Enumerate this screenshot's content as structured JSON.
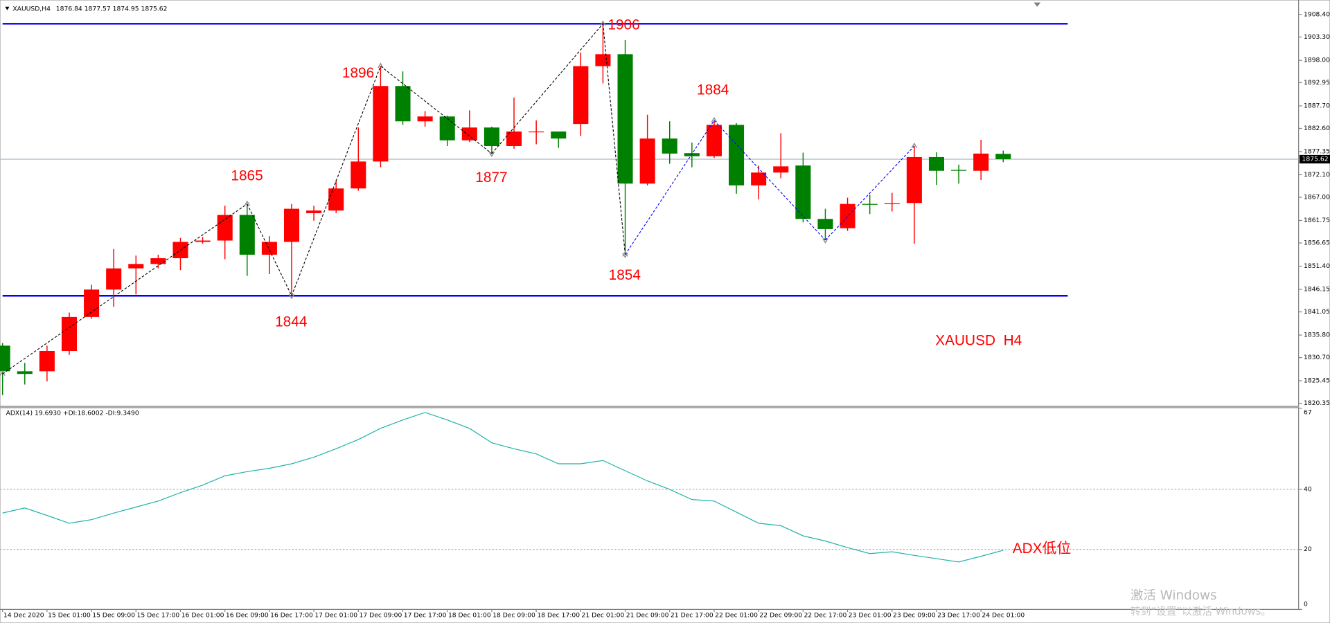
{
  "chart_data": [
    {
      "type": "candlestick",
      "symbol": "XAUUSD,H4",
      "categories": [
        "14 Dec 2020",
        null,
        "15 Dec 01:00",
        null,
        "15 Dec 09:00",
        null,
        "15 Dec 17:00",
        null,
        "16 Dec 01:00",
        null,
        "16 Dec 09:00",
        null,
        "16 Dec 17:00",
        null,
        "17 Dec 01:00",
        null,
        "17 Dec 09:00",
        null,
        "17 Dec 17:00",
        null,
        "18 Dec 01:00",
        null,
        "18 Dec 09:00",
        null,
        "18 Dec 17:00",
        null,
        "21 Dec 01:00",
        null,
        "21 Dec 09:00",
        null,
        "21 Dec 17:00",
        null,
        "22 Dec 01:00",
        null,
        "22 Dec 09:00",
        null,
        "22 Dec 17:00",
        null,
        "23 Dec 01:00",
        null,
        "23 Dec 09:00",
        null,
        "23 Dec 17:00",
        null,
        "24 Dec 01:00",
        null
      ],
      "open": [
        1833.4,
        1827.6,
        1827.6,
        1832.2,
        1839.9,
        1846.1,
        1850.9,
        1851.9,
        1853.2,
        1856.9,
        1857.2,
        1863.0,
        1854.0,
        1856.9,
        1863.4,
        1864.0,
        1869.0,
        1875.1,
        1892.2,
        1884.2,
        1885.3,
        1879.9,
        1882.8,
        1878.6,
        1881.8,
        1881.9,
        1883.6,
        1896.7,
        1899.4,
        1870.1,
        1880.3,
        1877.0,
        1876.3,
        1883.4,
        1869.7,
        1872.6,
        1874.2,
        1862.1,
        1860.0,
        1865.5,
        1865.5,
        1865.7,
        1876.1,
        1873.2,
        1873.0,
        1876.84
      ],
      "high": [
        1834.0,
        1829.5,
        1833.4,
        1840.9,
        1847.2,
        1855.3,
        1853.8,
        1854.0,
        1857.8,
        1858.0,
        1865.1,
        1865.5,
        1858.2,
        1865.5,
        1865.1,
        1870.9,
        1882.8,
        1896.7,
        1895.5,
        1886.5,
        1885.5,
        1886.7,
        1883.0,
        1889.6,
        1884.4,
        1881.9,
        1899.8,
        1906.3,
        1902.6,
        1885.7,
        1884.2,
        1879.4,
        1884.4,
        1883.8,
        1874.2,
        1881.5,
        1877.1,
        1864.4,
        1866.9,
        1867.6,
        1868.0,
        1878.6,
        1877.2,
        1874.4,
        1880.0,
        1877.57
      ],
      "low": [
        1822.2,
        1824.6,
        1825.3,
        1831.3,
        1839.5,
        1842.2,
        1845.0,
        1850.9,
        1850.5,
        1856.5,
        1853.0,
        1849.2,
        1849.6,
        1844.7,
        1861.7,
        1863.4,
        1868.5,
        1873.8,
        1883.4,
        1883.0,
        1878.6,
        1879.5,
        1876.9,
        1878.0,
        1879.0,
        1878.2,
        1880.9,
        1892.8,
        1854.0,
        1869.7,
        1874.6,
        1873.8,
        1875.9,
        1867.8,
        1866.5,
        1871.3,
        1861.3,
        1857.3,
        1859.4,
        1863.2,
        1863.8,
        1856.5,
        1869.8,
        1870.1,
        1870.9,
        1874.95
      ],
      "close": [
        1827.6,
        1827.0,
        1832.2,
        1839.9,
        1846.1,
        1850.9,
        1851.9,
        1853.2,
        1856.9,
        1857.2,
        1863.0,
        1854.0,
        1856.9,
        1864.4,
        1864.0,
        1869.0,
        1875.1,
        1892.2,
        1884.2,
        1885.3,
        1879.9,
        1882.8,
        1878.6,
        1881.9,
        1881.9,
        1880.3,
        1896.7,
        1899.4,
        1870.1,
        1880.3,
        1876.9,
        1876.3,
        1883.4,
        1869.7,
        1872.6,
        1874.0,
        1862.1,
        1859.8,
        1865.5,
        1865.3,
        1865.7,
        1876.1,
        1873.0,
        1873.0,
        1876.9,
        1875.62
      ],
      "up_color": "#ff0000",
      "down_color": "#008000",
      "ylim": [
        1819.8,
        1911.1
      ],
      "yticks": [
        {
          "value": 1908.4,
          "label": "1908.40"
        },
        {
          "value": 1903.3,
          "label": "1903.30"
        },
        {
          "value": 1898,
          "label": "1898.00"
        },
        1892.95,
        {
          "value": 1887.7,
          "label": "1887.70"
        },
        {
          "value": 1882.6,
          "label": "1882.60"
        },
        1877.35,
        {
          "value": 1872.1,
          "label": "1872.10"
        },
        {
          "value": 1867,
          "label": "1867.00"
        },
        1861.75,
        1856.65,
        {
          "value": 1851.4,
          "label": "1851.40"
        },
        1846.15,
        1841.05,
        {
          "value": 1835.8,
          "label": "1835.80"
        },
        {
          "value": 1830.7,
          "label": "1830.70"
        },
        1825.45,
        1820.35
      ],
      "levels": [
        {
          "value": 1906.3,
          "color": "#0000ff"
        },
        {
          "value": 1844.7,
          "color": "#0000ff"
        }
      ],
      "zigzag": [
        {
          "color": "#000000",
          "values": [
            1827.0,
            null,
            null,
            null,
            null,
            null,
            null,
            null,
            null,
            null,
            null,
            1865.5,
            null,
            1844.7,
            null,
            null,
            null,
            1896.7,
            null,
            null,
            null,
            null,
            1876.9,
            null,
            null,
            null,
            null,
            1906.3,
            1854.0,
            null,
            null,
            null,
            null,
            null,
            null,
            null,
            null,
            null,
            null,
            null,
            null,
            null,
            null,
            null,
            null,
            null
          ]
        },
        {
          "color": "#0000ff",
          "values": [
            null,
            null,
            null,
            null,
            null,
            null,
            null,
            null,
            null,
            null,
            null,
            null,
            null,
            null,
            null,
            null,
            null,
            null,
            null,
            null,
            null,
            null,
            null,
            null,
            null,
            null,
            null,
            null,
            1854.0,
            null,
            null,
            null,
            1884.4,
            null,
            null,
            null,
            null,
            1857.3,
            null,
            null,
            null,
            1878.6,
            null,
            null,
            null,
            null
          ]
        }
      ],
      "annotations": [
        "1865",
        "1844",
        "1896",
        "1877",
        "1906",
        "1854",
        "1884",
        "XAUUSD  H4"
      ]
    },
    {
      "type": "line",
      "title": "ADX(14) 19.6930 +DI:18.6002 -DI:9.3490",
      "values": [
        32.1,
        33.8,
        31.3,
        28.7,
        29.9,
        32.1,
        34.1,
        36.1,
        38.9,
        41.4,
        44.5,
        45.9,
        47.0,
        48.5,
        50.7,
        53.5,
        56.6,
        60.3,
        63.1,
        65.6,
        63.1,
        60.3,
        55.5,
        53.5,
        51.8,
        48.5,
        48.5,
        49.6,
        46.2,
        42.8,
        40.0,
        36.6,
        36.1,
        32.4,
        28.7,
        27.9,
        24.5,
        22.8,
        20.6,
        18.6,
        19.2,
        18.0,
        16.9,
        15.8,
        17.7,
        19.693
      ],
      "color": "#20b2aa",
      "ylim": [
        0,
        67
      ],
      "yticks": [
        0,
        20,
        40,
        67
      ],
      "levels": [
        20,
        40
      ],
      "annotation": "ADX低位"
    }
  ],
  "overlay": [
    "激活 Windows",
    "转到“设置”以激活 Windows。"
  ]
}
